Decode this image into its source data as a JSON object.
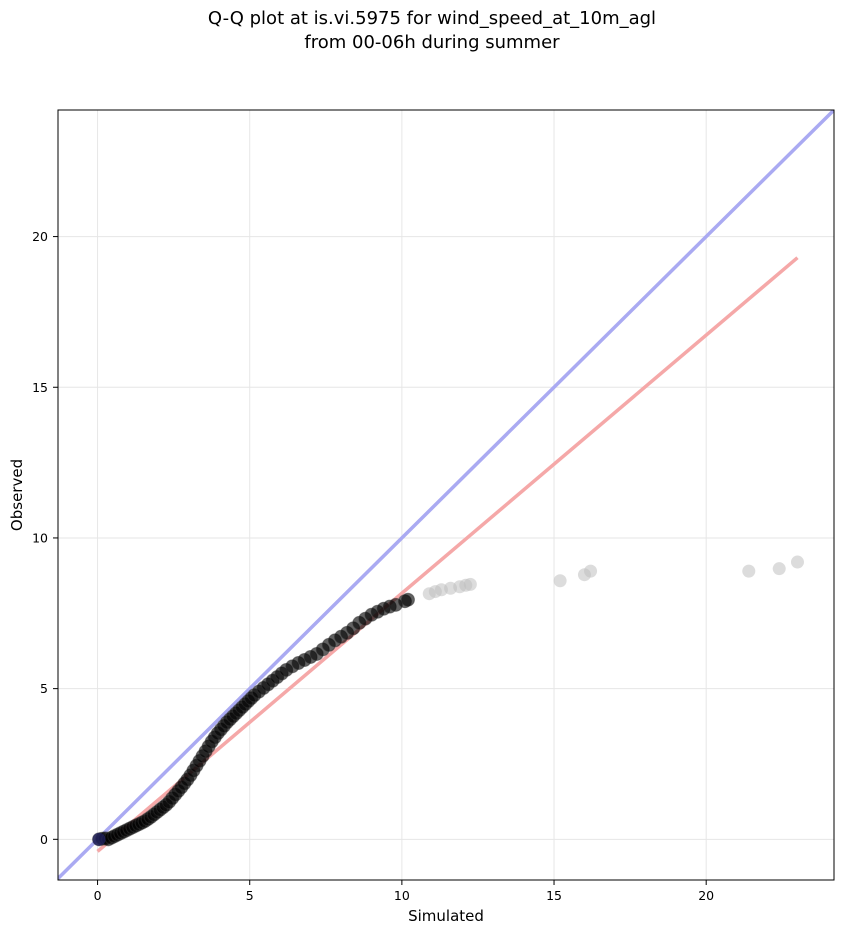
{
  "chart_data": {
    "type": "scatter",
    "title_lines": [
      "Q-Q plot at is.vi.5975 for wind_speed_at_10m_agl",
      "from 00-06h during summer"
    ],
    "xlabel": "Simulated",
    "ylabel": "Observed",
    "xlim": [
      -1.3,
      24.2
    ],
    "ylim": [
      -1.35,
      24.2
    ],
    "xticks": [
      0,
      5,
      10,
      15,
      20
    ],
    "yticks": [
      0,
      5,
      10,
      15,
      20
    ],
    "grid": true,
    "reference_line": {
      "name": "1:1",
      "color": "#aaaaf2",
      "points": [
        [
          -1.3,
          -1.3
        ],
        [
          24.2,
          24.2
        ]
      ]
    },
    "fit_line": {
      "color": "#f5a8a8",
      "points": [
        [
          0.0,
          -0.4
        ],
        [
          23.0,
          19.3
        ]
      ]
    },
    "colors": {
      "points": "#000000",
      "outlier_points": "#bfbfbf",
      "grid": "#e6e6e6"
    },
    "series": [
      {
        "values": [
          [
            0.05,
            0.0
          ],
          [
            0.15,
            0.02
          ],
          [
            0.25,
            0.03
          ],
          [
            0.35,
            0.0
          ],
          [
            0.45,
            0.05
          ],
          [
            0.55,
            0.1
          ],
          [
            0.65,
            0.15
          ],
          [
            0.75,
            0.2
          ],
          [
            0.85,
            0.25
          ],
          [
            0.95,
            0.3
          ],
          [
            1.05,
            0.35
          ],
          [
            1.15,
            0.4
          ],
          [
            1.25,
            0.45
          ],
          [
            1.35,
            0.5
          ],
          [
            1.45,
            0.55
          ],
          [
            1.55,
            0.6
          ],
          [
            1.65,
            0.67
          ],
          [
            1.75,
            0.74
          ],
          [
            1.85,
            0.82
          ],
          [
            1.95,
            0.9
          ],
          [
            2.05,
            0.98
          ],
          [
            2.15,
            1.06
          ],
          [
            2.25,
            1.14
          ],
          [
            2.35,
            1.24
          ],
          [
            2.45,
            1.36
          ],
          [
            2.55,
            1.48
          ],
          [
            2.65,
            1.6
          ],
          [
            2.75,
            1.72
          ],
          [
            2.85,
            1.85
          ],
          [
            2.95,
            1.98
          ],
          [
            3.05,
            2.12
          ],
          [
            3.15,
            2.28
          ],
          [
            3.25,
            2.44
          ],
          [
            3.35,
            2.6
          ],
          [
            3.45,
            2.76
          ],
          [
            3.55,
            2.92
          ],
          [
            3.65,
            3.08
          ],
          [
            3.75,
            3.24
          ],
          [
            3.85,
            3.38
          ],
          [
            3.95,
            3.52
          ],
          [
            4.05,
            3.64
          ],
          [
            4.15,
            3.76
          ],
          [
            4.25,
            3.88
          ],
          [
            4.35,
            3.98
          ],
          [
            4.45,
            4.08
          ],
          [
            4.55,
            4.18
          ],
          [
            4.65,
            4.28
          ],
          [
            4.75,
            4.38
          ],
          [
            4.85,
            4.48
          ],
          [
            4.95,
            4.58
          ],
          [
            5.05,
            4.68
          ],
          [
            5.15,
            4.78
          ],
          [
            5.3,
            4.9
          ],
          [
            5.45,
            5.02
          ],
          [
            5.6,
            5.14
          ],
          [
            5.75,
            5.26
          ],
          [
            5.9,
            5.38
          ],
          [
            6.05,
            5.5
          ],
          [
            6.2,
            5.62
          ],
          [
            6.4,
            5.74
          ],
          [
            6.6,
            5.85
          ],
          [
            6.8,
            5.95
          ],
          [
            7.0,
            6.05
          ],
          [
            7.2,
            6.15
          ],
          [
            7.4,
            6.3
          ],
          [
            7.6,
            6.45
          ],
          [
            7.8,
            6.6
          ],
          [
            8.0,
            6.72
          ],
          [
            8.2,
            6.85
          ],
          [
            8.4,
            7.0
          ],
          [
            8.6,
            7.18
          ],
          [
            8.8,
            7.32
          ],
          [
            9.0,
            7.45
          ],
          [
            9.2,
            7.55
          ],
          [
            9.4,
            7.65
          ],
          [
            9.6,
            7.72
          ],
          [
            9.8,
            7.78
          ],
          [
            10.1,
            7.9
          ],
          [
            10.2,
            7.95
          ]
        ]
      },
      {
        "values": [
          [
            10.9,
            8.15
          ],
          [
            11.1,
            8.22
          ],
          [
            11.3,
            8.28
          ],
          [
            11.6,
            8.33
          ],
          [
            11.9,
            8.38
          ],
          [
            12.1,
            8.43
          ],
          [
            12.25,
            8.46
          ],
          [
            15.2,
            8.58
          ],
          [
            16.0,
            8.78
          ],
          [
            16.2,
            8.9
          ],
          [
            21.4,
            8.9
          ],
          [
            22.4,
            8.98
          ],
          [
            23.0,
            9.2
          ]
        ]
      }
    ]
  }
}
